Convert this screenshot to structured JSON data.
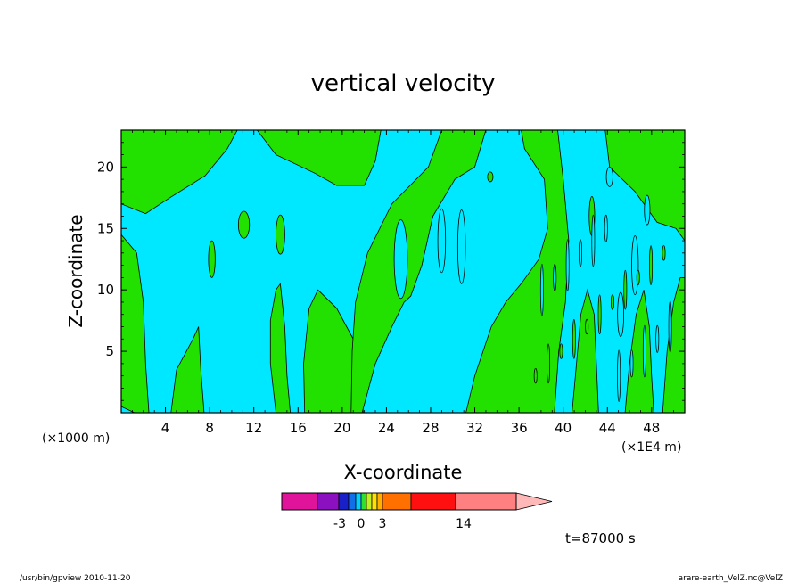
{
  "chart_data": {
    "type": "heatmap",
    "title": "vertical velocity",
    "xlabel": "X-coordinate",
    "ylabel": "Z-coordinate",
    "x_unit_left": "(×1000 m)",
    "x_unit_right": "(×1E4 m)",
    "xlim": [
      0,
      51
    ],
    "ylim": [
      0,
      23
    ],
    "x_ticks": [
      "4",
      "8",
      "12",
      "16",
      "20",
      "24",
      "28",
      "32",
      "36",
      "40",
      "44",
      "48"
    ],
    "y_ticks": [
      "5",
      "10",
      "15",
      "20"
    ],
    "colorbar": {
      "colors": [
        "#e0149a",
        "#8a10c0",
        "#1a20c8",
        "#1070e8",
        "#00d0ff",
        "#30e030",
        "#c0f020",
        "#ffe000",
        "#ffb000",
        "#ff7000",
        "#ff1010",
        "#ff8080",
        "#ffb8b8"
      ],
      "labels": [
        "-3",
        "0",
        "3",
        "14"
      ]
    },
    "time_label": "t=87000 s",
    "dominant_colors": {
      "negative": "#00e8ff",
      "positive": "#22e000"
    }
  },
  "footer": {
    "left": "/usr/bin/gpview   2010-11-20",
    "right": "arare-earth_VelZ.nc@VelZ"
  }
}
